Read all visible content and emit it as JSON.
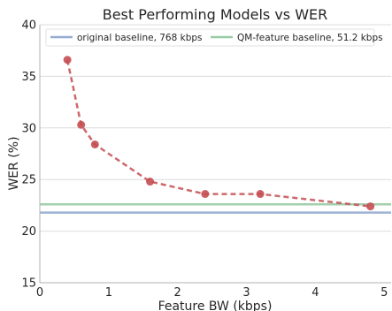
{
  "chart_data": {
    "type": "line",
    "title": "Best Performing Models vs WER",
    "xlabel": "Feature BW (kbps)",
    "ylabel": "WER (%)",
    "xlim": [
      0,
      5.1
    ],
    "ylim": [
      15,
      40
    ],
    "x_ticks": [
      0,
      1,
      2,
      3,
      4,
      5
    ],
    "y_ticks": [
      15,
      20,
      25,
      30,
      35,
      40
    ],
    "x_tick_labels": [
      "0",
      "1",
      "2",
      "3",
      "4",
      "5"
    ],
    "y_tick_labels": [
      "15",
      "20",
      "25",
      "30",
      "35",
      "40"
    ],
    "grid": "horizontal",
    "legend_position": "top",
    "series": [
      {
        "x": [
          0.4,
          0.6,
          0.8,
          1.6,
          2.4,
          3.2,
          4.8
        ],
        "y": [
          36.6,
          30.3,
          28.4,
          24.8,
          23.6,
          23.6,
          22.4
        ],
        "color": "#c44e52",
        "style": "dashed",
        "marker": "circle"
      }
    ],
    "baselines": [
      {
        "name": "original baseline, 768 kbps",
        "y": 21.8,
        "color": "#4c72b0"
      },
      {
        "name": "QM-feature baseline, 51.2 kbps",
        "y": 22.6,
        "color": "#55a868"
      }
    ]
  }
}
